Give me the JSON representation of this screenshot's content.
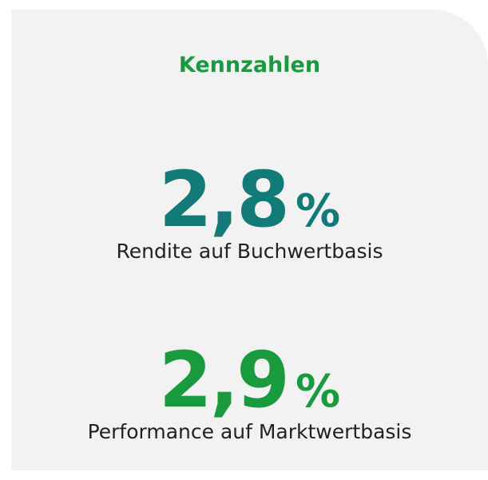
{
  "header": {
    "title": "Kennzahlen"
  },
  "kpis": [
    {
      "value": "2,8",
      "unit": "%",
      "label": "Rendite auf Buchwertbasis"
    },
    {
      "value": "2,9",
      "unit": "%",
      "label": "Performance auf Marktwertbasis"
    }
  ]
}
